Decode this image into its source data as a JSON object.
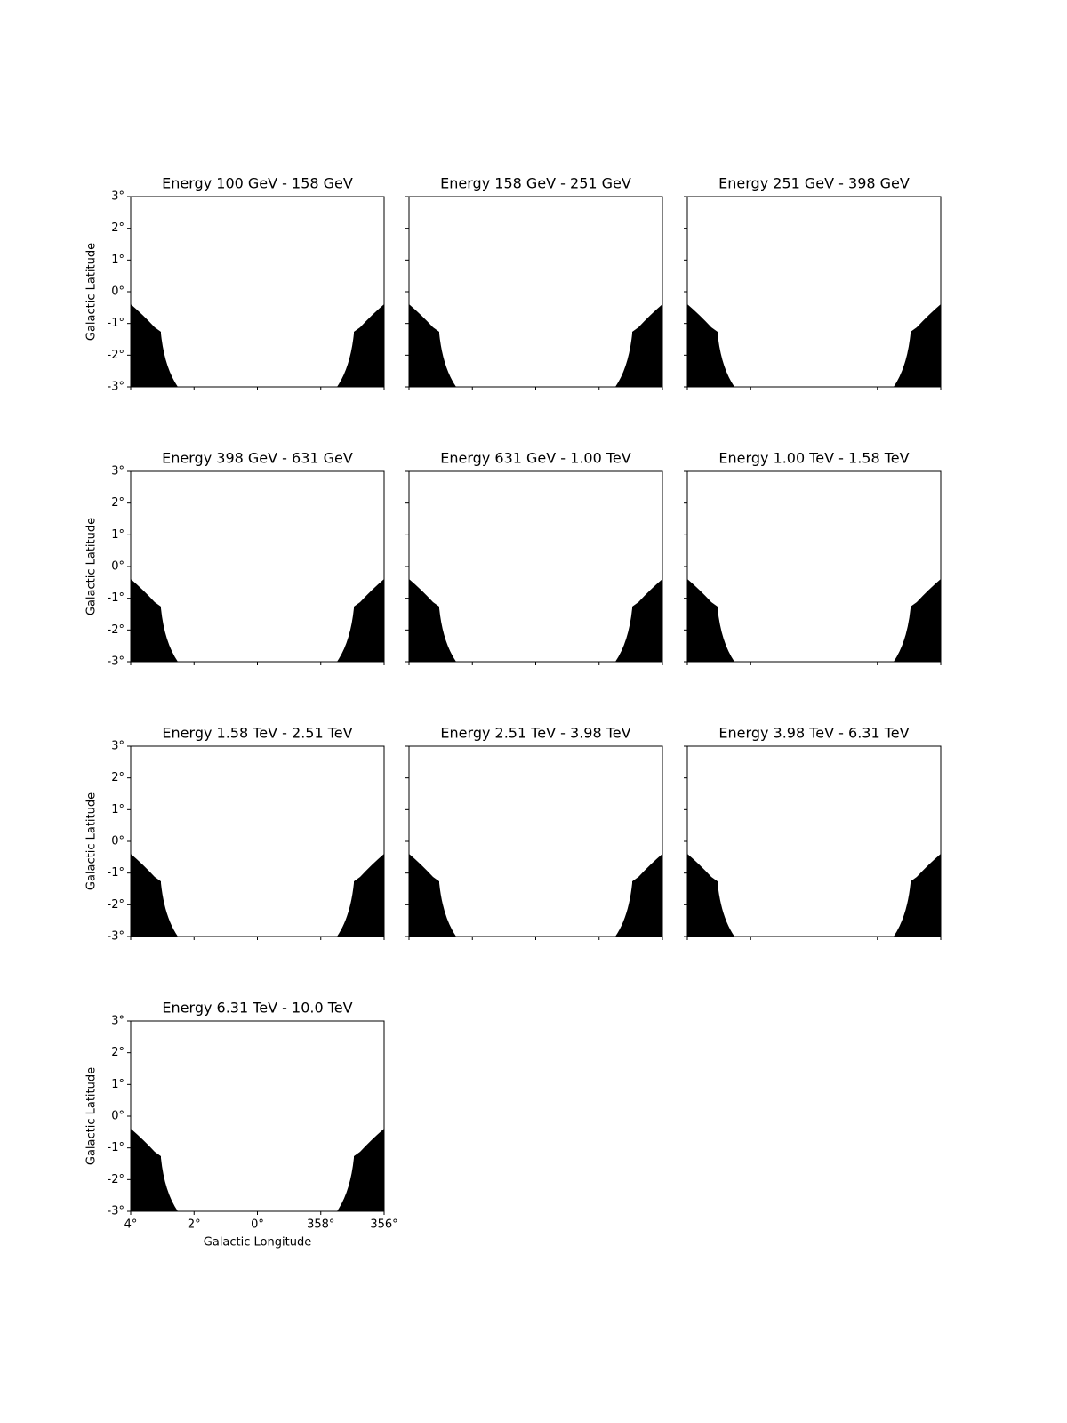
{
  "chart_data": [
    {
      "type": "image",
      "title": "Energy 100 GeV - 158 GeV",
      "ylabel": "Galactic Latitude",
      "xlim": [
        4,
        356
      ],
      "ylim": [
        -3,
        3
      ],
      "xticks": [
        4,
        2,
        0,
        358,
        356
      ],
      "yticks": [
        {
          "value": 3,
          "label": "3°"
        },
        {
          "value": 2,
          "label": "2°"
        },
        {
          "value": 1,
          "label": "1°"
        },
        {
          "value": 0,
          "label": "0°"
        },
        {
          "value": -1,
          "label": "-1°"
        },
        {
          "value": -2,
          "label": "-2°"
        },
        {
          "value": -3,
          "label": "-3°"
        }
      ]
    },
    {
      "type": "image",
      "title": "Energy 158 GeV - 251 GeV",
      "xlim": [
        4,
        356
      ],
      "ylim": [
        -3,
        3
      ],
      "xticks": [
        4,
        2,
        0,
        358,
        356
      ],
      "yticks": [
        3,
        2,
        1,
        0,
        -1,
        -2,
        -3
      ]
    },
    {
      "type": "image",
      "title": "Energy 251 GeV - 398 GeV",
      "xlim": [
        4,
        356
      ],
      "ylim": [
        -3,
        3
      ],
      "xticks": [
        4,
        2,
        0,
        358,
        356
      ],
      "yticks": [
        3,
        2,
        1,
        0,
        -1,
        -2,
        -3
      ]
    },
    {
      "type": "image",
      "title": "Energy 398 GeV - 631 GeV",
      "ylabel": "Galactic Latitude",
      "xlim": [
        4,
        356
      ],
      "ylim": [
        -3,
        3
      ],
      "xticks": [
        4,
        2,
        0,
        358,
        356
      ],
      "yticks": [
        {
          "value": 3,
          "label": "3°"
        },
        {
          "value": 2,
          "label": "2°"
        },
        {
          "value": 1,
          "label": "1°"
        },
        {
          "value": 0,
          "label": "0°"
        },
        {
          "value": -1,
          "label": "-1°"
        },
        {
          "value": -2,
          "label": "-2°"
        },
        {
          "value": -3,
          "label": "-3°"
        }
      ]
    },
    {
      "type": "image",
      "title": "Energy 631 GeV - 1.00 TeV",
      "xlim": [
        4,
        356
      ],
      "ylim": [
        -3,
        3
      ],
      "xticks": [
        4,
        2,
        0,
        358,
        356
      ],
      "yticks": [
        3,
        2,
        1,
        0,
        -1,
        -2,
        -3
      ]
    },
    {
      "type": "image",
      "title": "Energy 1.00 TeV - 1.58 TeV",
      "xlim": [
        4,
        356
      ],
      "ylim": [
        -3,
        3
      ],
      "xticks": [
        4,
        2,
        0,
        358,
        356
      ],
      "yticks": [
        3,
        2,
        1,
        0,
        -1,
        -2,
        -3
      ]
    },
    {
      "type": "image",
      "title": "Energy 1.58 TeV - 2.51 TeV",
      "ylabel": "Galactic Latitude",
      "xlim": [
        4,
        356
      ],
      "ylim": [
        -3,
        3
      ],
      "xticks": [
        4,
        2,
        0,
        358,
        356
      ],
      "yticks": [
        {
          "value": 3,
          "label": "3°"
        },
        {
          "value": 2,
          "label": "2°"
        },
        {
          "value": 1,
          "label": "1°"
        },
        {
          "value": 0,
          "label": "0°"
        },
        {
          "value": -1,
          "label": "-1°"
        },
        {
          "value": -2,
          "label": "-2°"
        },
        {
          "value": -3,
          "label": "-3°"
        }
      ]
    },
    {
      "type": "image",
      "title": "Energy 2.51 TeV - 3.98 TeV",
      "xlim": [
        4,
        356
      ],
      "ylim": [
        -3,
        3
      ],
      "xticks": [
        4,
        2,
        0,
        358,
        356
      ],
      "yticks": [
        3,
        2,
        1,
        0,
        -1,
        -2,
        -3
      ]
    },
    {
      "type": "image",
      "title": "Energy 3.98 TeV - 6.31 TeV",
      "xlim": [
        4,
        356
      ],
      "ylim": [
        -3,
        3
      ],
      "xticks": [
        4,
        2,
        0,
        358,
        356
      ],
      "yticks": [
        3,
        2,
        1,
        0,
        -1,
        -2,
        -3
      ]
    },
    {
      "type": "image",
      "title": "Energy 6.31 TeV - 10.0 TeV",
      "xlabel": "Galactic Longitude",
      "ylabel": "Galactic Latitude",
      "xlim": [
        4,
        356
      ],
      "ylim": [
        -3,
        3
      ],
      "xticks": [
        {
          "value": 4,
          "label": "4°"
        },
        {
          "value": 2,
          "label": "2°"
        },
        {
          "value": 0,
          "label": "0°"
        },
        {
          "value": 358,
          "label": "358°"
        },
        {
          "value": 356,
          "label": "356°"
        }
      ],
      "yticks": [
        {
          "value": 3,
          "label": "3°"
        },
        {
          "value": 2,
          "label": "2°"
        },
        {
          "value": 1,
          "label": "1°"
        },
        {
          "value": 0,
          "label": "0°"
        },
        {
          "value": -1,
          "label": "-1°"
        },
        {
          "value": -2,
          "label": "-2°"
        },
        {
          "value": -3,
          "label": "-3°"
        }
      ]
    }
  ]
}
